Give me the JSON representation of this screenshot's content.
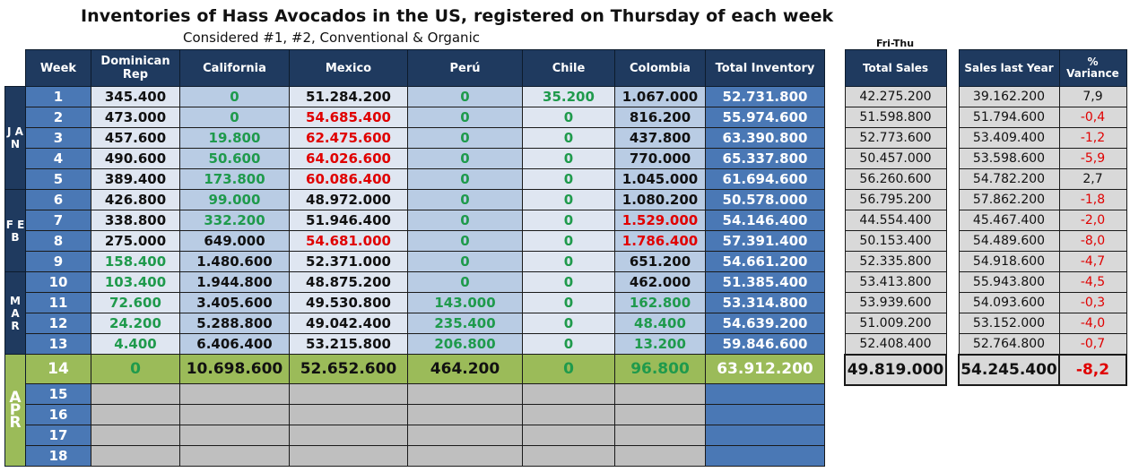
{
  "title": "Inventories of Hass Avocados in the US, registered on Thursday of each week",
  "subtitle": "Considered #1, #2, Conventional & Organic",
  "sales_period_note": "Fri-Thu",
  "columns": {
    "week": "Week",
    "dominican": "Dominican Rep",
    "california": "California",
    "mexico": "Mexico",
    "peru": "Perú",
    "chile": "Chile",
    "colombia": "Colombia",
    "total": "Total Inventory",
    "total_sales": "Total Sales",
    "sales_last_year": "Sales last Year",
    "variance": "% Variance"
  },
  "months": [
    {
      "label": "J A N",
      "rows": 5
    },
    {
      "label": "F E B",
      "rows": 4
    },
    {
      "label": "M A R",
      "rows": 4
    },
    {
      "label": "A P R",
      "rows": 5
    }
  ],
  "rows": [
    {
      "week": "1",
      "dom": {
        "v": "345.400",
        "c": "black"
      },
      "cal": {
        "v": "0",
        "c": "green"
      },
      "mex": {
        "v": "51.284.200",
        "c": "black"
      },
      "peru": {
        "v": "0",
        "c": "green"
      },
      "chile": {
        "v": "35.200",
        "c": "green"
      },
      "col": {
        "v": "1.067.000",
        "c": "black"
      },
      "total": "52.731.800",
      "sales": "42.275.200",
      "last_year": "39.162.200",
      "variance": "7,9",
      "var_neg": false
    },
    {
      "week": "2",
      "dom": {
        "v": "473.000",
        "c": "black"
      },
      "cal": {
        "v": "0",
        "c": "green"
      },
      "mex": {
        "v": "54.685.400",
        "c": "red"
      },
      "peru": {
        "v": "0",
        "c": "green"
      },
      "chile": {
        "v": "0",
        "c": "green"
      },
      "col": {
        "v": "816.200",
        "c": "black"
      },
      "total": "55.974.600",
      "sales": "51.598.800",
      "last_year": "51.794.600",
      "variance": "-0,4",
      "var_neg": true
    },
    {
      "week": "3",
      "dom": {
        "v": "457.600",
        "c": "black"
      },
      "cal": {
        "v": "19.800",
        "c": "green"
      },
      "mex": {
        "v": "62.475.600",
        "c": "red"
      },
      "peru": {
        "v": "0",
        "c": "green"
      },
      "chile": {
        "v": "0",
        "c": "green"
      },
      "col": {
        "v": "437.800",
        "c": "black"
      },
      "total": "63.390.800",
      "sales": "52.773.600",
      "last_year": "53.409.400",
      "variance": "-1,2",
      "var_neg": true
    },
    {
      "week": "4",
      "dom": {
        "v": "490.600",
        "c": "black"
      },
      "cal": {
        "v": "50.600",
        "c": "green"
      },
      "mex": {
        "v": "64.026.600",
        "c": "red"
      },
      "peru": {
        "v": "0",
        "c": "green"
      },
      "chile": {
        "v": "0",
        "c": "green"
      },
      "col": {
        "v": "770.000",
        "c": "black"
      },
      "total": "65.337.800",
      "sales": "50.457.000",
      "last_year": "53.598.600",
      "variance": "-5,9",
      "var_neg": true
    },
    {
      "week": "5",
      "dom": {
        "v": "389.400",
        "c": "black"
      },
      "cal": {
        "v": "173.800",
        "c": "green"
      },
      "mex": {
        "v": "60.086.400",
        "c": "red"
      },
      "peru": {
        "v": "0",
        "c": "green"
      },
      "chile": {
        "v": "0",
        "c": "green"
      },
      "col": {
        "v": "1.045.000",
        "c": "black"
      },
      "total": "61.694.600",
      "sales": "56.260.600",
      "last_year": "54.782.200",
      "variance": "2,7",
      "var_neg": false
    },
    {
      "week": "6",
      "dom": {
        "v": "426.800",
        "c": "black"
      },
      "cal": {
        "v": "99.000",
        "c": "green"
      },
      "mex": {
        "v": "48.972.000",
        "c": "black"
      },
      "peru": {
        "v": "0",
        "c": "green"
      },
      "chile": {
        "v": "0",
        "c": "green"
      },
      "col": {
        "v": "1.080.200",
        "c": "black"
      },
      "total": "50.578.000",
      "sales": "56.795.200",
      "last_year": "57.862.200",
      "variance": "-1,8",
      "var_neg": true
    },
    {
      "week": "7",
      "dom": {
        "v": "338.800",
        "c": "black"
      },
      "cal": {
        "v": "332.200",
        "c": "green"
      },
      "mex": {
        "v": "51.946.400",
        "c": "black"
      },
      "peru": {
        "v": "0",
        "c": "green"
      },
      "chile": {
        "v": "0",
        "c": "green"
      },
      "col": {
        "v": "1.529.000",
        "c": "red"
      },
      "total": "54.146.400",
      "sales": "44.554.400",
      "last_year": "45.467.400",
      "variance": "-2,0",
      "var_neg": true
    },
    {
      "week": "8",
      "dom": {
        "v": "275.000",
        "c": "black"
      },
      "cal": {
        "v": "649.000",
        "c": "black"
      },
      "mex": {
        "v": "54.681.000",
        "c": "red"
      },
      "peru": {
        "v": "0",
        "c": "green"
      },
      "chile": {
        "v": "0",
        "c": "green"
      },
      "col": {
        "v": "1.786.400",
        "c": "red"
      },
      "total": "57.391.400",
      "sales": "50.153.400",
      "last_year": "54.489.600",
      "variance": "-8,0",
      "var_neg": true
    },
    {
      "week": "9",
      "dom": {
        "v": "158.400",
        "c": "green"
      },
      "cal": {
        "v": "1.480.600",
        "c": "black"
      },
      "mex": {
        "v": "52.371.000",
        "c": "black"
      },
      "peru": {
        "v": "0",
        "c": "green"
      },
      "chile": {
        "v": "0",
        "c": "green"
      },
      "col": {
        "v": "651.200",
        "c": "black"
      },
      "total": "54.661.200",
      "sales": "52.335.800",
      "last_year": "54.918.600",
      "variance": "-4,7",
      "var_neg": true
    },
    {
      "week": "10",
      "dom": {
        "v": "103.400",
        "c": "green"
      },
      "cal": {
        "v": "1.944.800",
        "c": "black"
      },
      "mex": {
        "v": "48.875.200",
        "c": "black"
      },
      "peru": {
        "v": "0",
        "c": "green"
      },
      "chile": {
        "v": "0",
        "c": "green"
      },
      "col": {
        "v": "462.000",
        "c": "black"
      },
      "total": "51.385.400",
      "sales": "53.413.800",
      "last_year": "55.943.800",
      "variance": "-4,5",
      "var_neg": true
    },
    {
      "week": "11",
      "dom": {
        "v": "72.600",
        "c": "green"
      },
      "cal": {
        "v": "3.405.600",
        "c": "black"
      },
      "mex": {
        "v": "49.530.800",
        "c": "black"
      },
      "peru": {
        "v": "143.000",
        "c": "green"
      },
      "chile": {
        "v": "0",
        "c": "green"
      },
      "col": {
        "v": "162.800",
        "c": "green"
      },
      "total": "53.314.800",
      "sales": "53.939.600",
      "last_year": "54.093.600",
      "variance": "-0,3",
      "var_neg": true
    },
    {
      "week": "12",
      "dom": {
        "v": "24.200",
        "c": "green"
      },
      "cal": {
        "v": "5.288.800",
        "c": "black"
      },
      "mex": {
        "v": "49.042.400",
        "c": "black"
      },
      "peru": {
        "v": "235.400",
        "c": "green"
      },
      "chile": {
        "v": "0",
        "c": "green"
      },
      "col": {
        "v": "48.400",
        "c": "green"
      },
      "total": "54.639.200",
      "sales": "51.009.200",
      "last_year": "53.152.000",
      "variance": "-4,0",
      "var_neg": true
    },
    {
      "week": "13",
      "dom": {
        "v": "4.400",
        "c": "green"
      },
      "cal": {
        "v": "6.406.400",
        "c": "black"
      },
      "mex": {
        "v": "53.215.800",
        "c": "black"
      },
      "peru": {
        "v": "206.800",
        "c": "green"
      },
      "chile": {
        "v": "0",
        "c": "green"
      },
      "col": {
        "v": "13.200",
        "c": "green"
      },
      "total": "59.846.600",
      "sales": "52.408.400",
      "last_year": "52.764.800",
      "variance": "-0,7",
      "var_neg": true
    }
  ],
  "current": {
    "week": "14",
    "dom": {
      "v": "0",
      "c": "green"
    },
    "cal": {
      "v": "10.698.600",
      "c": "black"
    },
    "mex": {
      "v": "52.652.600",
      "c": "black"
    },
    "peru": {
      "v": "464.200",
      "c": "black"
    },
    "chile": {
      "v": "0",
      "c": "green"
    },
    "col": {
      "v": "96.800",
      "c": "green"
    },
    "total": "63.912.200",
    "sales": "49.819.000",
    "last_year": "54.245.400",
    "variance": "-8,2",
    "var_neg": true
  },
  "future_weeks": [
    "15",
    "16",
    "17",
    "18"
  ]
}
